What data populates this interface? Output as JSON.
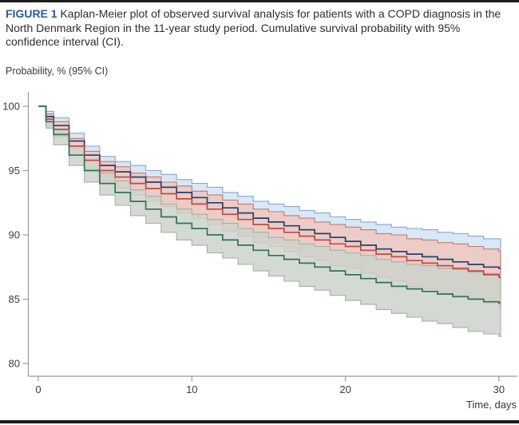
{
  "figure": {
    "label": "FIGURE 1",
    "caption": "Kaplan-Meier plot of observed survival analysis for patients with a COPD diagnosis in the North Denmark Region in the 11-year study period. Cumulative survival probability with 95% confidence interval (CI).",
    "y_axis_header": "Probability, % (95% CI)",
    "x_axis_label": "Time, days"
  },
  "colors": {
    "figure_label": "#275b9f",
    "rule": "#1c1c1c",
    "axis": "#9b9b9b",
    "tick_text": "#3c3c3c"
  },
  "chart_data": {
    "type": "line",
    "subtype": "kaplan-meier-step-with-ci-bands",
    "title": "Cumulative survival probability with 95% CI",
    "xlabel": "Time, days",
    "ylabel": "Probability, % (95% CI)",
    "xlim": [
      0,
      30.3
    ],
    "ylim": [
      80,
      100
    ],
    "x_ticks": [
      0,
      10,
      20,
      30
    ],
    "y_ticks": [
      100,
      95,
      90,
      85,
      80
    ],
    "grid": false,
    "legend": "none",
    "t": [
      0,
      0.5,
      1,
      2,
      3,
      4,
      5,
      6,
      7,
      8,
      9,
      10,
      11,
      12,
      13,
      14,
      15,
      16,
      17,
      18,
      19,
      20,
      21,
      22,
      23,
      24,
      25,
      26,
      27,
      28,
      29,
      30
    ],
    "series": [
      {
        "name": "navy-curve",
        "line_color": "#24406e",
        "band_fill": "#d3e6f6",
        "band_edge": "#8aa4cb",
        "band_opacity": 0.9,
        "surv": [
          100,
          99.2,
          98.5,
          97.3,
          96.2,
          95.4,
          94.9,
          94.5,
          94.1,
          93.7,
          93.3,
          92.9,
          92.5,
          92.1,
          91.7,
          91.3,
          91.0,
          90.7,
          90.4,
          90.1,
          89.8,
          89.5,
          89.2,
          88.9,
          88.7,
          88.5,
          88.3,
          88.1,
          87.9,
          87.7,
          87.5,
          87.4
        ],
        "upper": [
          100,
          99.6,
          99.1,
          97.9,
          96.9,
          96.1,
          95.7,
          95.4,
          95.0,
          94.7,
          94.3,
          94.0,
          93.7,
          93.3,
          93.0,
          92.6,
          92.4,
          92.2,
          91.9,
          91.7,
          91.4,
          91.2,
          91.0,
          90.8,
          90.6,
          90.5,
          90.4,
          90.2,
          90.1,
          89.9,
          89.7,
          89.7
        ],
        "lower": [
          100,
          98.7,
          97.9,
          96.6,
          95.4,
          94.6,
          94.0,
          93.5,
          93.0,
          92.6,
          92.1,
          91.6,
          91.2,
          90.7,
          90.2,
          89.8,
          89.4,
          89.0,
          88.7,
          88.3,
          87.9,
          87.5,
          87.2,
          86.8,
          86.5,
          86.2,
          85.9,
          85.7,
          85.4,
          85.1,
          84.9,
          84.8
        ]
      },
      {
        "name": "red-curve",
        "line_color": "#bf4a42",
        "band_fill": "#efc7be",
        "band_edge": "#c8796c",
        "band_opacity": 0.85,
        "surv": [
          100,
          99.0,
          98.2,
          96.9,
          95.8,
          95.0,
          94.5,
          94.0,
          93.6,
          93.2,
          92.8,
          92.4,
          92.0,
          91.6,
          91.2,
          90.8,
          90.5,
          90.2,
          89.9,
          89.6,
          89.3,
          89.1,
          88.8,
          88.5,
          88.3,
          88.0,
          87.8,
          87.6,
          87.4,
          87.2,
          86.9,
          86.7
        ],
        "upper": [
          100,
          99.4,
          98.8,
          97.5,
          96.5,
          95.7,
          95.3,
          94.8,
          94.5,
          94.1,
          93.8,
          93.4,
          93.1,
          92.7,
          92.4,
          92.0,
          91.8,
          91.5,
          91.3,
          91.0,
          90.8,
          90.6,
          90.4,
          90.1,
          90.0,
          89.7,
          89.6,
          89.4,
          89.3,
          89.1,
          88.9,
          88.7
        ],
        "lower": [
          100,
          98.5,
          97.6,
          96.2,
          95.1,
          94.2,
          93.6,
          93.1,
          92.6,
          92.2,
          91.7,
          91.3,
          90.8,
          90.3,
          89.9,
          89.4,
          89.1,
          88.7,
          88.3,
          88.0,
          87.6,
          87.4,
          87.0,
          86.7,
          86.4,
          86.0,
          85.8,
          85.5,
          85.3,
          85.0,
          84.7,
          84.4
        ]
      },
      {
        "name": "green-curve",
        "line_color": "#2f7355",
        "band_fill": "#cdd3cb",
        "band_edge": "#a6aea4",
        "band_opacity": 0.85,
        "surv": [
          100,
          98.8,
          97.8,
          96.2,
          95.0,
          94.0,
          93.3,
          92.6,
          92.0,
          91.4,
          90.9,
          90.5,
          90.0,
          89.6,
          89.2,
          88.8,
          88.4,
          88.1,
          87.8,
          87.5,
          87.2,
          86.9,
          86.6,
          86.3,
          86.0,
          85.8,
          85.6,
          85.4,
          85.2,
          85.0,
          84.8,
          84.7
        ],
        "upper": [
          100,
          99.2,
          98.5,
          96.9,
          95.8,
          94.8,
          94.2,
          93.5,
          93.0,
          92.4,
          92.0,
          91.6,
          91.2,
          90.9,
          90.5,
          90.2,
          89.8,
          89.6,
          89.3,
          89.1,
          88.8,
          88.6,
          88.4,
          88.1,
          87.9,
          87.7,
          87.6,
          87.4,
          87.3,
          87.1,
          87.0,
          87.0
        ],
        "lower": [
          100,
          98.3,
          97.0,
          95.4,
          94.1,
          93.1,
          92.3,
          91.5,
          90.9,
          90.2,
          89.6,
          89.2,
          88.6,
          88.2,
          87.7,
          87.2,
          86.8,
          86.4,
          86.0,
          85.7,
          85.3,
          84.9,
          84.6,
          84.2,
          83.9,
          83.6,
          83.3,
          83.1,
          82.8,
          82.5,
          82.3,
          82.1
        ]
      }
    ]
  }
}
